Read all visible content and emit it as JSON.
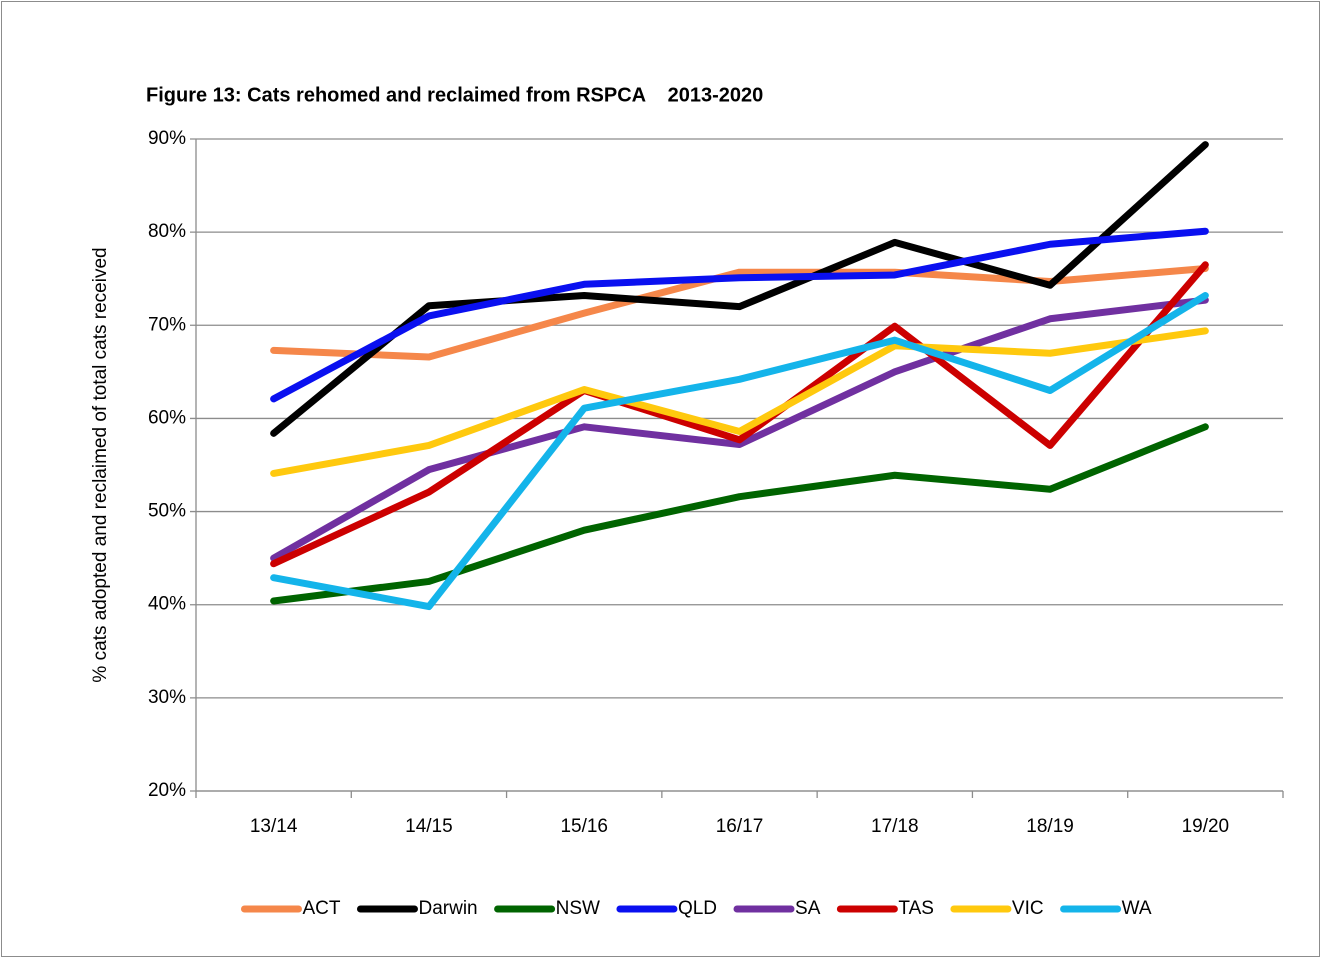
{
  "chart_data": {
    "type": "line",
    "title": "Figure 13: Cats rehomed and reclaimed from RSPCA    2013-2020",
    "y_label": "% cats adopted and reclaimed of total cats received",
    "categories": [
      "13/14",
      "14/15",
      "15/16",
      "16/17",
      "17/18",
      "18/19",
      "19/20"
    ],
    "series": [
      {
        "name": "ACT",
        "color": "#f5874a",
        "values": [
          67.3,
          66.6,
          71.3,
          75.7,
          75.7,
          74.7,
          76.1
        ]
      },
      {
        "name": "Darwin",
        "color": "#000000",
        "values": [
          58.4,
          72.1,
          73.2,
          72.0,
          78.9,
          74.3,
          89.4
        ]
      },
      {
        "name": "NSW",
        "color": "#006400",
        "values": [
          40.4,
          42.5,
          48.0,
          51.6,
          53.9,
          52.4,
          59.1
        ]
      },
      {
        "name": "QLD",
        "color": "#0a10f0",
        "values": [
          62.1,
          71.0,
          74.4,
          75.1,
          75.4,
          78.7,
          80.1
        ]
      },
      {
        "name": "SA",
        "color": "#7030a0",
        "values": [
          45.0,
          54.5,
          59.1,
          57.2,
          65.0,
          70.7,
          72.7
        ]
      },
      {
        "name": "TAS",
        "color": "#cc0000",
        "values": [
          44.4,
          52.1,
          63.0,
          57.7,
          69.9,
          57.1,
          76.5
        ]
      },
      {
        "name": "VIC",
        "color": "#ffc90e",
        "values": [
          54.1,
          57.1,
          63.1,
          58.6,
          67.8,
          67.0,
          69.4
        ]
      },
      {
        "name": "WA",
        "color": "#14b4ea",
        "values": [
          42.9,
          39.8,
          61.1,
          64.2,
          68.4,
          63.0,
          73.2
        ]
      }
    ],
    "ylim": [
      20,
      90
    ],
    "yticks": [
      {
        "value": 20,
        "label": "20%"
      },
      {
        "value": 30,
        "label": "30%"
      },
      {
        "value": 40,
        "label": "40%"
      },
      {
        "value": 50,
        "label": "50%"
      },
      {
        "value": 60,
        "label": "60%"
      },
      {
        "value": 70,
        "label": "70%"
      },
      {
        "value": 80,
        "label": "80%"
      },
      {
        "value": 90,
        "label": "90%"
      }
    ],
    "grid": true,
    "legend": "bottom"
  }
}
